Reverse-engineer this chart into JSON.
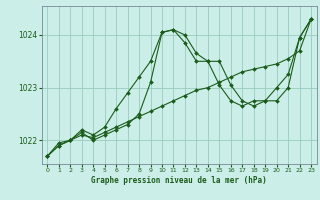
{
  "title": "Graphe pression niveau de la mer (hPa)",
  "bg_color": "#cceee8",
  "grid_color": "#99ccbb",
  "line_color": "#1a5c1a",
  "marker_color": "#1a5c1a",
  "xlim": [
    -0.5,
    23.5
  ],
  "ylim": [
    1021.55,
    1024.55
  ],
  "yticks": [
    1022,
    1023,
    1024
  ],
  "xticks": [
    0,
    1,
    2,
    3,
    4,
    5,
    6,
    7,
    8,
    9,
    10,
    11,
    12,
    13,
    14,
    15,
    16,
    17,
    18,
    19,
    20,
    21,
    22,
    23
  ],
  "series1": [
    1021.7,
    1021.9,
    1022.0,
    1022.1,
    1022.05,
    1022.15,
    1022.25,
    1022.35,
    1022.45,
    1022.55,
    1022.65,
    1022.75,
    1022.85,
    1022.95,
    1023.0,
    1023.1,
    1023.2,
    1023.3,
    1023.35,
    1023.4,
    1023.45,
    1023.55,
    1023.7,
    1024.3
  ],
  "series2": [
    1021.7,
    1021.95,
    1022.0,
    1022.15,
    1022.0,
    1022.1,
    1022.2,
    1022.3,
    1022.5,
    1023.1,
    1024.05,
    1024.1,
    1023.85,
    1023.5,
    1023.5,
    1023.05,
    1022.75,
    1022.65,
    1022.75,
    1022.75,
    1023.0,
    1023.25,
    1023.95,
    1024.3
  ],
  "series3": [
    1021.7,
    1021.9,
    1022.0,
    1022.2,
    1022.1,
    1022.25,
    1022.6,
    1022.9,
    1023.2,
    1023.5,
    1024.05,
    1024.1,
    1024.0,
    1023.65,
    1023.5,
    1023.5,
    1023.05,
    1022.75,
    1022.65,
    1022.75,
    1022.75,
    1023.0,
    1023.95,
    1024.3
  ]
}
